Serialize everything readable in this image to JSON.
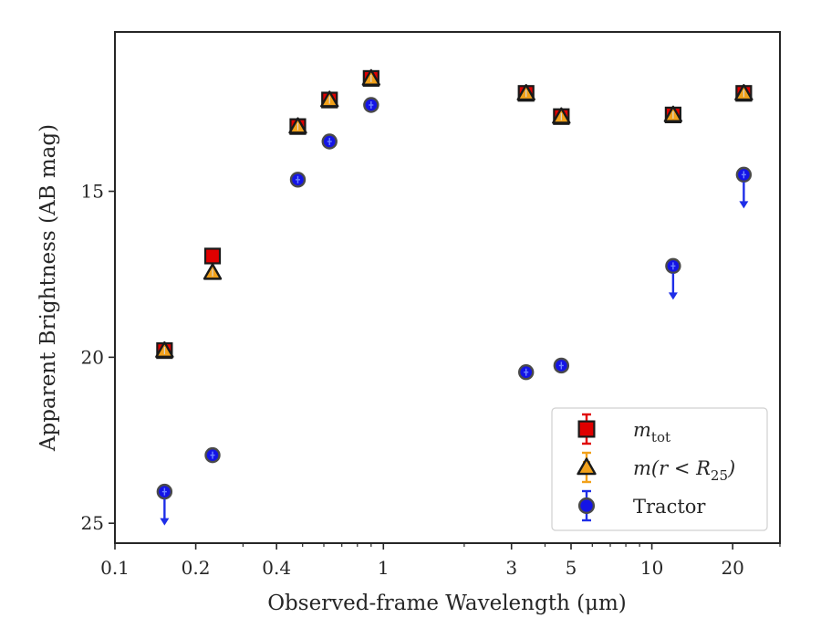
{
  "chart_data": {
    "type": "scatter",
    "xlabel": "Observed-frame Wavelength (μm)",
    "ylabel": "Apparent Brightness (AB mag)",
    "xscale": "log",
    "xlim": [
      0.1,
      30
    ],
    "ylim": [
      25.6,
      10.2
    ],
    "y_inverted": true,
    "grid": false,
    "legend_position": "lower-right",
    "x_tick_labels": [
      "0.1",
      "0.2",
      "0.4",
      "1",
      "3",
      "5",
      "10",
      "20"
    ],
    "x_ticks": [
      0.1,
      0.2,
      0.4,
      1,
      3,
      5,
      10,
      20
    ],
    "y_tick_labels": [
      "15",
      "20",
      "25"
    ],
    "y_ticks": [
      15,
      20,
      25
    ],
    "series": [
      {
        "name": "m_tot",
        "legend_label": "m",
        "legend_sub": "tot",
        "marker": "square",
        "color": "#e00000",
        "errcolor": "#e00000",
        "points": [
          {
            "x": 0.153,
            "y": 19.8
          },
          {
            "x": 0.231,
            "y": 16.95
          },
          {
            "x": 0.48,
            "y": 13.05
          },
          {
            "x": 0.63,
            "y": 12.25
          },
          {
            "x": 0.9,
            "y": 11.6
          },
          {
            "x": 3.4,
            "y": 12.05
          },
          {
            "x": 4.6,
            "y": 12.75
          },
          {
            "x": 12.0,
            "y": 12.7
          },
          {
            "x": 22.0,
            "y": 12.05
          }
        ]
      },
      {
        "name": "m(r < R25)",
        "legend_label": "m(r < R",
        "legend_sub": "25",
        "legend_suffix": ")",
        "marker": "triangle",
        "color": "#f2a11a",
        "errcolor": "#f2a11a",
        "points": [
          {
            "x": 0.153,
            "y": 19.8
          },
          {
            "x": 0.231,
            "y": 17.45
          },
          {
            "x": 0.48,
            "y": 13.05
          },
          {
            "x": 0.63,
            "y": 12.25
          },
          {
            "x": 0.9,
            "y": 11.6
          },
          {
            "x": 3.4,
            "y": 12.05
          },
          {
            "x": 4.6,
            "y": 12.75
          },
          {
            "x": 12.0,
            "y": 12.7
          },
          {
            "x": 22.0,
            "y": 12.05
          }
        ]
      },
      {
        "name": "Tractor",
        "legend_label": "Tractor",
        "marker": "circle",
        "color": "#1414e6",
        "errcolor": "#1e2ee8",
        "points": [
          {
            "x": 0.153,
            "y": 24.05,
            "upper_limit": true
          },
          {
            "x": 0.231,
            "y": 22.95
          },
          {
            "x": 0.48,
            "y": 14.65
          },
          {
            "x": 0.63,
            "y": 13.5
          },
          {
            "x": 0.9,
            "y": 12.4
          },
          {
            "x": 3.4,
            "y": 20.45
          },
          {
            "x": 4.6,
            "y": 20.25
          },
          {
            "x": 12.0,
            "y": 17.25,
            "upper_limit": true
          },
          {
            "x": 22.0,
            "y": 14.5,
            "upper_limit": true
          }
        ]
      }
    ]
  }
}
